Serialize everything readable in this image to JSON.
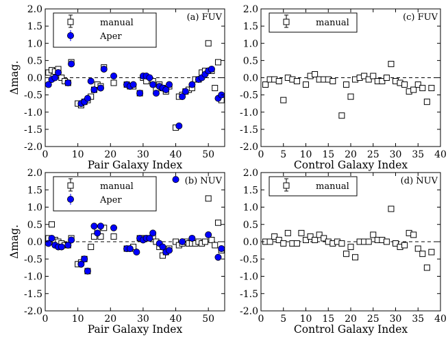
{
  "chart_data": [
    {
      "id": "a",
      "type": "scatter",
      "label": "(a) FUV",
      "xlabel": "Pair Galaxy Index",
      "ylabel": "Δmag.",
      "xlim": [
        0,
        55
      ],
      "ylim": [
        -2.0,
        2.0
      ],
      "xticks": [
        "0",
        "10",
        "20",
        "30",
        "40",
        "50"
      ],
      "xtick_values": [
        0,
        10,
        20,
        30,
        40,
        50
      ],
      "yticks": [
        "-2.0",
        "-1.5",
        "-1.0",
        "-0.5",
        "0.0",
        "0.5",
        "1.0",
        "1.5",
        "2.0"
      ],
      "ytick_values": [
        -2.0,
        -1.5,
        -1.0,
        -0.5,
        0.0,
        0.5,
        1.0,
        1.5,
        2.0
      ],
      "legend": [
        "manual",
        "Aper"
      ],
      "errorbar_sample": {
        "x": 8,
        "y": 1.55,
        "err": 0.13
      },
      "series": [
        {
          "name": "manual",
          "marker": "open-square",
          "x": [
            1,
            2,
            3,
            4,
            5,
            6,
            7,
            8,
            10,
            11,
            12,
            13,
            14,
            15,
            16,
            17,
            18,
            21,
            25,
            26,
            27,
            29,
            30,
            31,
            33,
            34,
            35,
            36,
            37,
            38,
            40,
            41,
            42,
            43,
            44,
            45,
            46,
            47,
            48,
            49,
            50,
            51,
            52,
            53,
            54
          ],
          "y": [
            0.15,
            0.22,
            0.18,
            0.25,
            0.0,
            -0.1,
            -0.15,
            0.45,
            -0.75,
            -0.8,
            -0.7,
            -0.65,
            -0.55,
            -0.35,
            -0.2,
            -0.25,
            0.3,
            -0.15,
            -0.2,
            -0.25,
            -0.25,
            -0.45,
            0.0,
            -0.1,
            -0.1,
            -0.35,
            -0.2,
            -0.3,
            -0.4,
            -0.25,
            -1.45,
            -0.55,
            -0.5,
            -0.4,
            -0.35,
            -0.3,
            -0.05,
            -0.05,
            0.15,
            0.2,
            1.0,
            0.2,
            -0.3,
            0.45,
            -0.65
          ]
        },
        {
          "name": "Aper",
          "marker": "filled-circle",
          "x": [
            1,
            2,
            3,
            4,
            7,
            8,
            11,
            12,
            13,
            14,
            15,
            17,
            18,
            21,
            25,
            26,
            27,
            29,
            30,
            31,
            32,
            33,
            34,
            35,
            36,
            37,
            38,
            41,
            42,
            43,
            45,
            47,
            48,
            49,
            50,
            51,
            53,
            54
          ],
          "y": [
            -0.2,
            -0.05,
            0.0,
            0.15,
            -0.15,
            0.4,
            -0.75,
            -0.7,
            -0.6,
            -0.1,
            -0.35,
            -0.3,
            0.25,
            0.05,
            -0.2,
            -0.25,
            -0.2,
            -0.45,
            0.05,
            0.05,
            0.0,
            -0.2,
            -0.45,
            -0.25,
            -0.3,
            -0.35,
            -0.2,
            -1.4,
            -0.55,
            -0.4,
            -0.2,
            -0.05,
            0.0,
            0.1,
            0.2,
            0.25,
            -0.6,
            -0.5
          ]
        }
      ]
    },
    {
      "id": "b",
      "type": "scatter",
      "label": "(b) NUV",
      "xlabel": "Pair Galaxy Index",
      "ylabel": "Δmag.",
      "xlim": [
        0,
        55
      ],
      "ylim": [
        -2.0,
        2.0
      ],
      "xticks": [
        "0",
        "10",
        "20",
        "30",
        "40",
        "50"
      ],
      "xtick_values": [
        0,
        10,
        20,
        30,
        40,
        50
      ],
      "yticks": [
        "-2.0",
        "-1.5",
        "-1.0",
        "-0.5",
        "0.0",
        "0.5",
        "1.0",
        "1.5",
        "2.0"
      ],
      "ytick_values": [
        -2.0,
        -1.5,
        -1.0,
        -0.5,
        0.0,
        0.5,
        1.0,
        1.5,
        2.0
      ],
      "legend": [
        "manual",
        "Aper"
      ],
      "errorbar_sample": {
        "x": 8,
        "y": 1.55,
        "err": 0.13
      },
      "series": [
        {
          "name": "manual",
          "marker": "open-square",
          "x": [
            1,
            2,
            3,
            4,
            5,
            6,
            7,
            8,
            10,
            11,
            12,
            13,
            14,
            15,
            16,
            17,
            18,
            21,
            25,
            26,
            27,
            29,
            30,
            31,
            33,
            34,
            35,
            36,
            37,
            38,
            40,
            41,
            42,
            43,
            44,
            45,
            46,
            47,
            48,
            49,
            50,
            51,
            52,
            53,
            54
          ],
          "y": [
            0.1,
            0.5,
            0.05,
            0.0,
            -0.05,
            -0.1,
            -0.1,
            0.1,
            -0.65,
            -0.6,
            -0.5,
            -0.85,
            -0.15,
            0.15,
            0.35,
            0.15,
            0.4,
            0.15,
            -0.2,
            -0.2,
            -0.15,
            0.1,
            0.1,
            0.1,
            0.15,
            0.0,
            -0.15,
            -0.4,
            -0.3,
            -0.2,
            0.0,
            -0.1,
            -0.05,
            0.0,
            -0.05,
            -0.05,
            -0.05,
            0.0,
            -0.05,
            0.0,
            1.25,
            0.05,
            -0.1,
            0.55,
            -0.25
          ]
        },
        {
          "name": "Aper",
          "marker": "filled-circle",
          "x": [
            1,
            2,
            3,
            4,
            5,
            7,
            8,
            11,
            12,
            13,
            15,
            16,
            17,
            21,
            25,
            26,
            28,
            29,
            30,
            31,
            32,
            33,
            35,
            36,
            37,
            38,
            40,
            42,
            45,
            50,
            53,
            54
          ],
          "y": [
            -0.05,
            0.1,
            -0.1,
            -0.15,
            -0.15,
            -0.1,
            0.05,
            -0.65,
            -0.5,
            -0.85,
            0.45,
            0.25,
            0.45,
            0.4,
            -0.2,
            -0.2,
            -0.3,
            0.1,
            0.05,
            0.1,
            0.1,
            0.25,
            -0.05,
            -0.15,
            -0.3,
            -0.25,
            1.8,
            0.0,
            0.1,
            0.2,
            -0.45,
            -0.2
          ]
        }
      ]
    },
    {
      "id": "c",
      "type": "scatter",
      "label": "(c) FUV",
      "xlabel": "Control Galaxy Index",
      "ylabel": "",
      "xlim": [
        0,
        40
      ],
      "ylim": [
        -2.0,
        2.0
      ],
      "xticks": [
        "0",
        "5",
        "10",
        "15",
        "20",
        "25",
        "30",
        "35",
        "40"
      ],
      "xtick_values": [
        0,
        5,
        10,
        15,
        20,
        25,
        30,
        35,
        40
      ],
      "yticks": [
        "-2.0",
        "-1.5",
        "-1.0",
        "-0.5",
        "0.0",
        "0.5",
        "1.0",
        "1.5",
        "2.0"
      ],
      "ytick_values": [
        -2.0,
        -1.5,
        -1.0,
        -0.5,
        0.0,
        0.5,
        1.0,
        1.5,
        2.0
      ],
      "legend": [
        "manual"
      ],
      "errorbar_sample": {
        "x": 5,
        "y": 1.55,
        "err": 0.13
      },
      "series": [
        {
          "name": "manual",
          "marker": "open-square",
          "x": [
            1,
            2,
            3,
            4,
            5,
            6,
            7,
            8,
            10,
            11,
            12,
            13,
            14,
            15,
            16,
            18,
            19,
            20,
            21,
            22,
            23,
            24,
            25,
            26,
            27,
            28,
            29,
            30,
            31,
            32,
            33,
            34,
            35,
            36,
            37,
            38
          ],
          "y": [
            -0.2,
            -0.05,
            -0.05,
            -0.1,
            -0.65,
            0.0,
            -0.05,
            -0.1,
            -0.2,
            0.05,
            0.1,
            -0.05,
            -0.05,
            -0.05,
            -0.1,
            -1.1,
            -0.2,
            -0.55,
            -0.05,
            0.0,
            0.05,
            -0.05,
            0.05,
            -0.1,
            -0.1,
            0.0,
            0.4,
            -0.1,
            -0.15,
            -0.2,
            -0.4,
            -0.35,
            -0.2,
            -0.3,
            -0.7,
            -0.3
          ]
        }
      ]
    },
    {
      "id": "d",
      "type": "scatter",
      "label": "(d) NUV",
      "xlabel": "Control Galaxy Index",
      "ylabel": "",
      "xlim": [
        0,
        40
      ],
      "ylim": [
        -2.0,
        2.0
      ],
      "xticks": [
        "0",
        "5",
        "10",
        "15",
        "20",
        "25",
        "30",
        "35",
        "40"
      ],
      "xtick_values": [
        0,
        5,
        10,
        15,
        20,
        25,
        30,
        35,
        40
      ],
      "yticks": [
        "-2.0",
        "-1.5",
        "-1.0",
        "-0.5",
        "0.0",
        "0.5",
        "1.0",
        "1.5",
        "2.0"
      ],
      "ytick_values": [
        -2.0,
        -1.5,
        -1.0,
        -0.5,
        0.0,
        0.5,
        1.0,
        1.5,
        2.0
      ],
      "legend": [
        "manual"
      ],
      "errorbar_sample": {
        "x": 5,
        "y": 1.55,
        "err": 0.13
      },
      "series": [
        {
          "name": "manual",
          "marker": "open-square",
          "x": [
            1,
            2,
            3,
            4,
            5,
            6,
            7,
            8,
            9,
            10,
            11,
            12,
            13,
            14,
            15,
            16,
            17,
            18,
            19,
            20,
            21,
            22,
            23,
            24,
            25,
            26,
            27,
            28,
            29,
            30,
            31,
            32,
            33,
            34,
            35,
            36,
            37,
            38
          ],
          "y": [
            0.0,
            0.0,
            0.15,
            0.05,
            -0.05,
            0.25,
            -0.05,
            -0.05,
            0.25,
            0.05,
            0.15,
            0.05,
            0.2,
            0.1,
            0.0,
            -0.05,
            0.0,
            -0.05,
            -0.35,
            -0.15,
            -0.45,
            0.0,
            0.0,
            0.0,
            0.2,
            0.05,
            0.05,
            0.0,
            0.95,
            -0.05,
            -0.15,
            -0.1,
            0.25,
            0.2,
            -0.2,
            -0.35,
            -0.75,
            -0.3
          ]
        }
      ]
    }
  ]
}
